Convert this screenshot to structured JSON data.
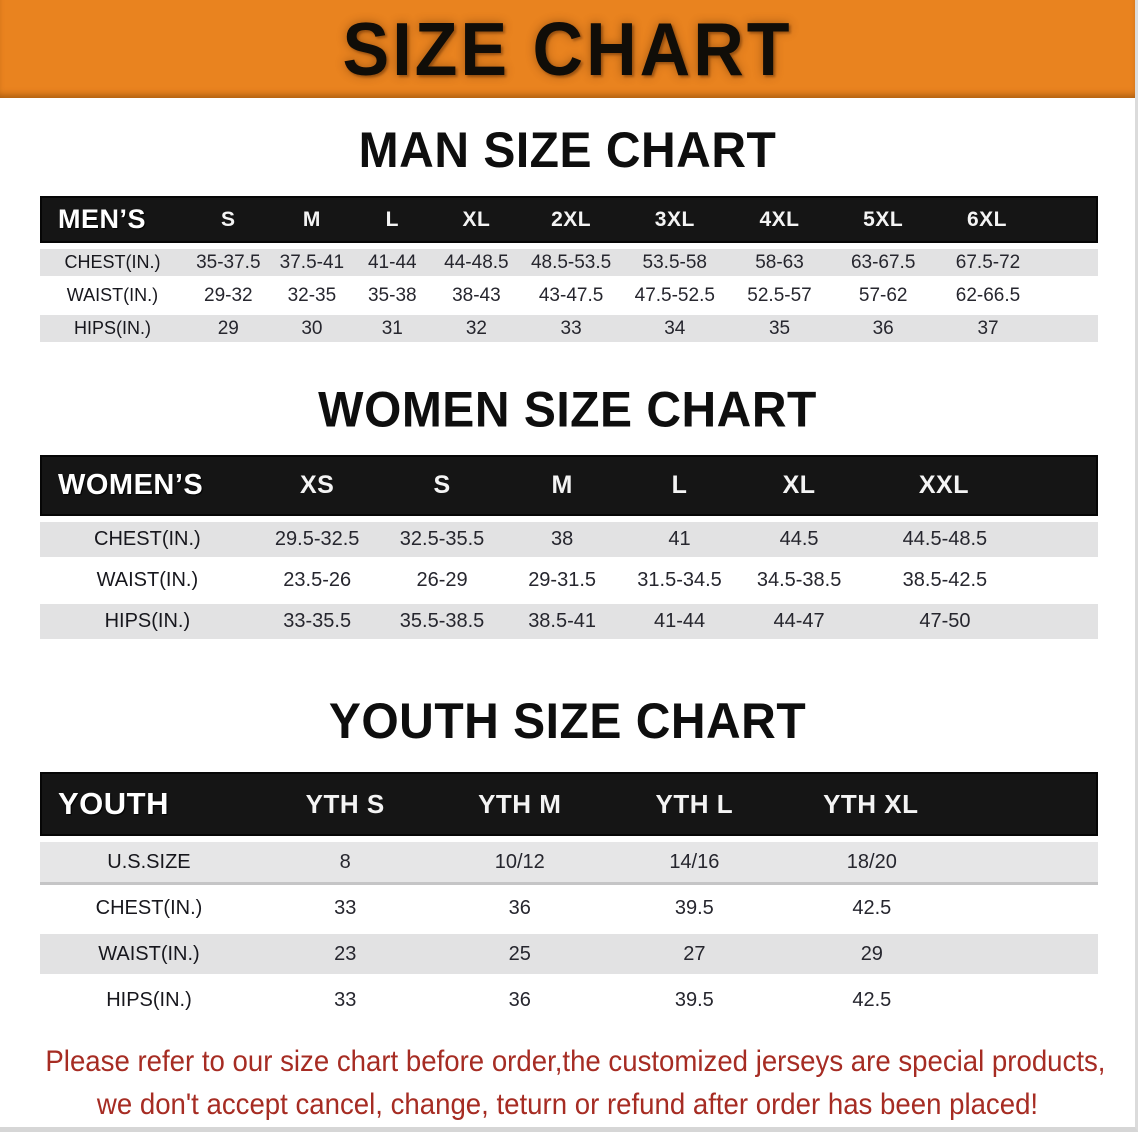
{
  "banner": {
    "title": "SIZE CHART",
    "bg_color": "#E9831F",
    "text_color": "#100d08"
  },
  "sections": {
    "man": {
      "heading": "MAN SIZE CHART",
      "table": {
        "name": "MEN’S",
        "columns": [
          "S",
          "M",
          "L",
          "XL",
          "2XL",
          "3XL",
          "4XL",
          "5XL",
          "6XL"
        ],
        "rows": [
          {
            "label": "CHEST(IN.)",
            "values": [
              "35-37.5",
              "37.5-41",
              "41-44",
              "44-48.5",
              "48.5-53.5",
              "53.5-58",
              "58-63",
              "63-67.5",
              "67.5-72"
            ]
          },
          {
            "label": "WAIST(IN.)",
            "values": [
              "29-32",
              "32-35",
              "35-38",
              "38-43",
              "43-47.5",
              "47.5-52.5",
              "52.5-57",
              "57-62",
              "62-66.5"
            ]
          },
          {
            "label": "HIPS(IN.)",
            "values": [
              "29",
              "30",
              "31",
              "32",
              "33",
              "34",
              "35",
              "36",
              "37"
            ]
          }
        ]
      }
    },
    "women": {
      "heading": "WOMEN SIZE CHART",
      "table": {
        "name": "WOMEN’S",
        "columns": [
          "XS",
          "S",
          "M",
          "L",
          "XL",
          "XXL"
        ],
        "rows": [
          {
            "label": "CHEST(IN.)",
            "values": [
              "29.5-32.5",
              "32.5-35.5",
              "38",
              "41",
              "44.5",
              "44.5-48.5"
            ]
          },
          {
            "label": "WAIST(IN.)",
            "values": [
              "23.5-26",
              "26-29",
              "29-31.5",
              "31.5-34.5",
              "34.5-38.5",
              "38.5-42.5"
            ]
          },
          {
            "label": "HIPS(IN.)",
            "values": [
              "33-35.5",
              "35.5-38.5",
              "38.5-41",
              "41-44",
              "44-47",
              "47-50"
            ]
          }
        ]
      }
    },
    "youth": {
      "heading": "YOUTH SIZE CHART",
      "table": {
        "name": "YOUTH",
        "columns": [
          "YTH S",
          "YTH M",
          "YTH L",
          "YTH XL"
        ],
        "rows": [
          {
            "label": "U.S.SIZE",
            "values": [
              "8",
              "10/12",
              "14/16",
              "18/20"
            ]
          },
          {
            "label": "CHEST(IN.)",
            "values": [
              "33",
              "36",
              "39.5",
              "42.5"
            ]
          },
          {
            "label": "WAIST(IN.)",
            "values": [
              "23",
              "25",
              "27",
              "29"
            ]
          },
          {
            "label": "HIPS(IN.)",
            "values": [
              "33",
              "36",
              "39.5",
              "42.5"
            ]
          }
        ]
      }
    }
  },
  "disclaimer": {
    "line1": "Please refer to our size chart before order,the customized jerseys are special products,",
    "line2": "we don't accept cancel, change, teturn or refund after order has been placed!",
    "text_color": "#A62C23"
  },
  "colors": {
    "banner_orange": "#E9831F",
    "header_bar_black": "#151515",
    "row_gray": "#E2E2E3",
    "row_white": "#FFFFFF"
  }
}
